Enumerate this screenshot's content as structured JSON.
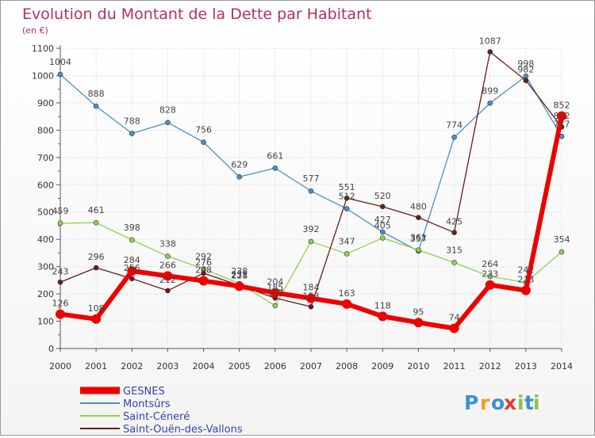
{
  "chart_data": {
    "type": "line",
    "title": "Evolution du Montant de la Dette par Habitant",
    "subtitle": "(en €)",
    "x": [
      "2000",
      "2001",
      "2002",
      "2003",
      "2004",
      "2005",
      "2006",
      "2007",
      "2008",
      "2009",
      "2010",
      "2011",
      "2012",
      "2013",
      "2014"
    ],
    "ylim": [
      0,
      1100
    ],
    "yticks": [
      0,
      100,
      200,
      300,
      400,
      500,
      600,
      700,
      800,
      900,
      1000,
      1100
    ],
    "grid": true,
    "legend_position": "bottom-left",
    "series": [
      {
        "name": "GESNES",
        "color": "#ee0000",
        "values": [
          126,
          108,
          284,
          266,
          248,
          228,
          204,
          184,
          163,
          118,
          95,
          74,
          233,
          213,
          852
        ]
      },
      {
        "name": "Montsûrs",
        "color": "#4a90c8",
        "values": [
          1004,
          888,
          788,
          828,
          756,
          629,
          661,
          577,
          512,
          427,
          357,
          774,
          899,
          998,
          777
        ]
      },
      {
        "name": "Saint-Céneré",
        "color": "#8fd14f",
        "values": [
          459,
          461,
          398,
          338,
          292,
          238,
          157,
          392,
          347,
          405,
          361,
          315,
          264,
          242,
          354
        ]
      },
      {
        "name": "Saint-Ouën-des-Vallons",
        "color": "#6b1a1a",
        "values": [
          243,
          296,
          256,
          212,
          276,
          231,
          185,
          153,
          551,
          520,
          480,
          425,
          1087,
          982,
          812
        ]
      }
    ]
  },
  "brand": {
    "logo_text": "Proxiti",
    "letters": [
      "P",
      "r",
      "o",
      "x",
      "i",
      "t",
      "i"
    ],
    "letter_colors": [
      "#3a8fd8",
      "#f39a1e",
      "#3a8fd8",
      "#e63a2e",
      "#8bc34a",
      "#3a8fd8",
      "#8bc34a"
    ]
  }
}
